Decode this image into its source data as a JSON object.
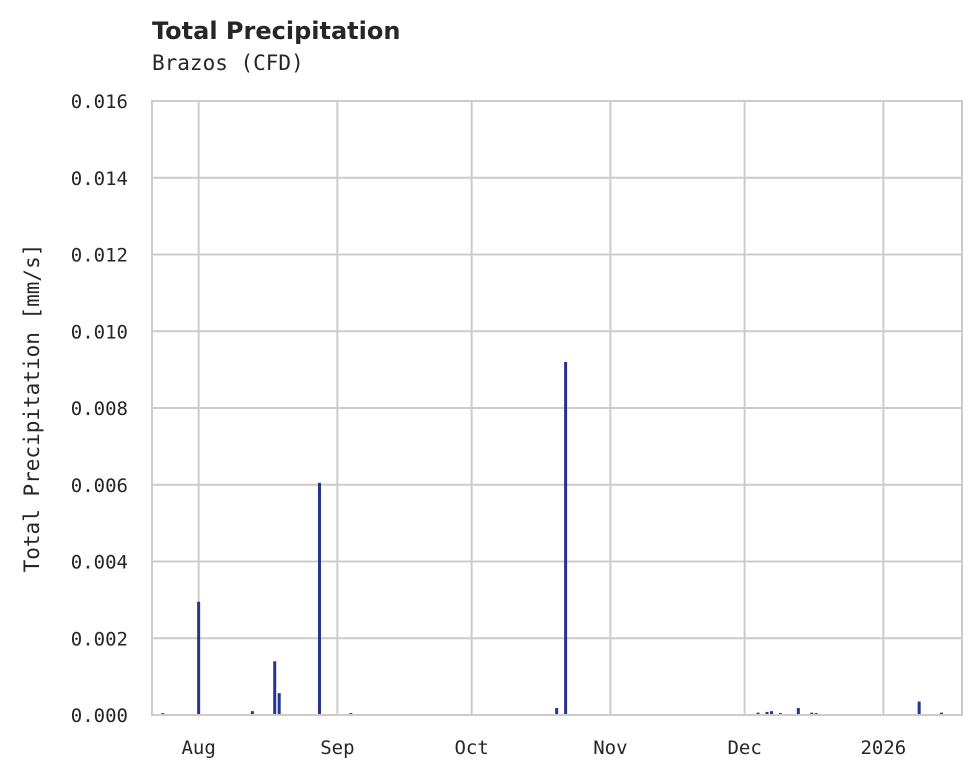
{
  "chart_data": {
    "type": "bar",
    "title": "Total Precipitation",
    "subtitle": "Brazos (CFD)",
    "xlabel": "",
    "ylabel": "Total Precipitation [mm/s]",
    "ylim": [
      0.0,
      0.016
    ],
    "yticks": [
      "0.000",
      "0.002",
      "0.004",
      "0.006",
      "0.008",
      "0.010",
      "0.012",
      "0.014",
      "0.016"
    ],
    "xticks": [
      "Aug",
      "Sep",
      "Oct",
      "Nov",
      "Dec",
      "2026"
    ],
    "grid": true,
    "legend": null,
    "series_color": "#24348f",
    "x_range": [
      "2025-07-18",
      "2026-01-15"
    ],
    "series": [
      {
        "name": "Total Precipitation",
        "points": [
          {
            "date": "2025-07-24",
            "value": 5e-05
          },
          {
            "date": "2025-08-01",
            "value": 0.00295
          },
          {
            "date": "2025-08-13",
            "value": 0.0001
          },
          {
            "date": "2025-08-18",
            "value": 0.0014
          },
          {
            "date": "2025-08-19",
            "value": 0.00057
          },
          {
            "date": "2025-08-28",
            "value": 0.00605
          },
          {
            "date": "2025-09-04",
            "value": 5e-05
          },
          {
            "date": "2025-10-20",
            "value": 0.00018
          },
          {
            "date": "2025-10-22",
            "value": 0.0092
          },
          {
            "date": "2025-12-04",
            "value": 6e-05
          },
          {
            "date": "2025-12-06",
            "value": 8e-05
          },
          {
            "date": "2025-12-07",
            "value": 0.0001
          },
          {
            "date": "2025-12-09",
            "value": 5e-05
          },
          {
            "date": "2025-12-13",
            "value": 0.00018
          },
          {
            "date": "2025-12-16",
            "value": 6e-05
          },
          {
            "date": "2025-12-17",
            "value": 5e-05
          },
          {
            "date": "2026-01-09",
            "value": 0.00035
          },
          {
            "date": "2026-01-14",
            "value": 6e-05
          }
        ]
      }
    ]
  }
}
